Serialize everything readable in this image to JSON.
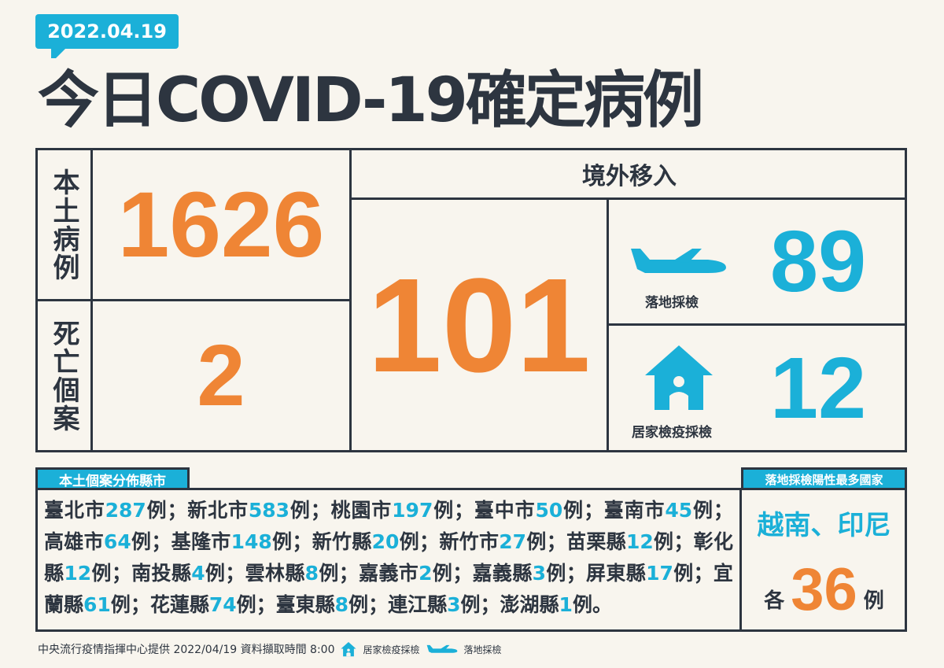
{
  "date": "2022.04.19",
  "title": "今日COVID-19確定病例",
  "local": {
    "label": "本土病例",
    "value": "1626"
  },
  "deaths": {
    "label": "死亡個案",
    "value": "2"
  },
  "imported": {
    "label": "境外移入",
    "value": "101",
    "landing": {
      "label": "落地採檢",
      "value": "89",
      "icon": "airplane-icon"
    },
    "home": {
      "label": "居家檢疫採檢",
      "value": "12",
      "icon": "house-icon"
    }
  },
  "distribution": {
    "label": "本土個案分佈縣市",
    "unit": "例",
    "sep": "；",
    "end": "。",
    "items": [
      {
        "name": "臺北市",
        "count": "287"
      },
      {
        "name": "新北市",
        "count": "583"
      },
      {
        "name": "桃園市",
        "count": "197"
      },
      {
        "name": "臺中市",
        "count": "50"
      },
      {
        "name": "臺南市",
        "count": "45"
      },
      {
        "name": "高雄市",
        "count": "64"
      },
      {
        "name": "基隆市",
        "count": "148"
      },
      {
        "name": "新竹縣",
        "count": "20"
      },
      {
        "name": "新竹市",
        "count": "27"
      },
      {
        "name": "苗栗縣",
        "count": "12"
      },
      {
        "name": "彰化縣",
        "count": "12"
      },
      {
        "name": "南投縣",
        "count": "4"
      },
      {
        "name": "雲林縣",
        "count": "8"
      },
      {
        "name": "嘉義市",
        "count": "2"
      },
      {
        "name": "嘉義縣",
        "count": "3"
      },
      {
        "name": "屏東縣",
        "count": "17"
      },
      {
        "name": "宜蘭縣",
        "count": "61"
      },
      {
        "name": "花蓮縣",
        "count": "74"
      },
      {
        "name": "臺東縣",
        "count": "8"
      },
      {
        "name": "連江縣",
        "count": "3"
      },
      {
        "name": "澎湖縣",
        "count": "1"
      }
    ]
  },
  "top_countries": {
    "label": "落地採檢陽性最多國家",
    "countries": "越南、印尼",
    "prefix": "各",
    "value": "36",
    "suffix": "例"
  },
  "footer": {
    "source": "中央流行疫情指揮中心提供 2022/04/19 資料擷取時間 8:00",
    "legend_home": "居家檢疫採檢",
    "legend_landing": "落地採檢"
  },
  "colors": {
    "orange": "#ef8535",
    "blue": "#1bb0d8",
    "dark": "#2d3540",
    "background": "#f8f5ee"
  }
}
